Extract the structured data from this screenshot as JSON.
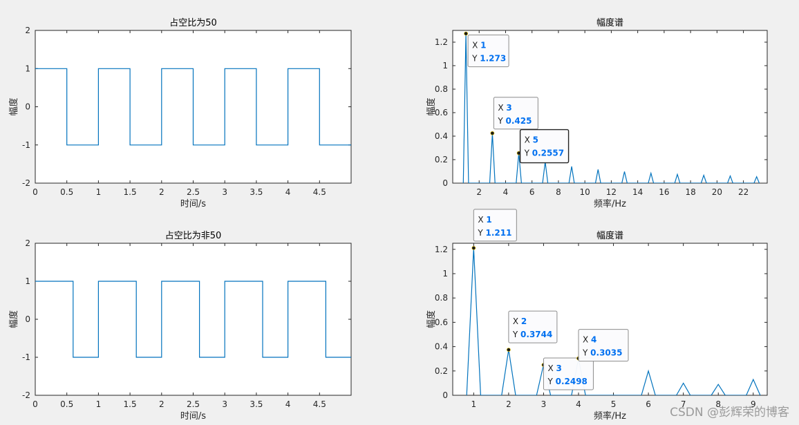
{
  "watermark": "CSDN @彭辉荣的博客",
  "chart_data": [
    {
      "type": "line",
      "title": "占空比为50",
      "xlabel": "时间/s",
      "ylabel": "幅度",
      "xlim": [
        0,
        5
      ],
      "ylim": [
        -2,
        2
      ],
      "xticks": [
        0,
        0.5,
        1,
        1.5,
        2,
        2.5,
        3,
        3.5,
        4,
        4.5
      ],
      "xtick_labels": [
        "0",
        "0.5",
        "1",
        "1.5",
        "2",
        "2.5",
        "3",
        "3.5",
        "4",
        "4.5"
      ],
      "yticks": [
        -2,
        -1,
        0,
        1,
        2
      ],
      "ytick_labels": [
        "-2",
        "-1",
        "0",
        "1",
        "2"
      ],
      "series": [
        {
          "x": [
            0,
            0.5,
            0.5,
            1,
            1,
            1.5,
            1.5,
            2,
            2,
            2.5,
            2.5,
            3,
            3,
            3.5,
            3.5,
            4,
            4,
            4.5,
            4.5,
            5
          ],
          "y": [
            1,
            1,
            -1,
            -1,
            1,
            1,
            -1,
            -1,
            1,
            1,
            -1,
            -1,
            1,
            1,
            -1,
            -1,
            1,
            1,
            -1,
            -1
          ]
        }
      ],
      "datatips": []
    },
    {
      "type": "line",
      "title": "幅度谱",
      "xlabel": "频率/Hz",
      "ylabel": "幅度",
      "xlim": [
        0,
        23.8
      ],
      "ylim": [
        0,
        1.3
      ],
      "xticks": [
        2,
        4,
        6,
        8,
        10,
        12,
        14,
        16,
        18,
        20,
        22
      ],
      "xtick_labels": [
        "2",
        "4",
        "6",
        "8",
        "10",
        "12",
        "14",
        "16",
        "18",
        "20",
        "22"
      ],
      "yticks": [
        0,
        0.2,
        0.4,
        0.6,
        0.8,
        1,
        1.2
      ],
      "ytick_labels": [
        "0",
        "0.2",
        "0.4",
        "0.6",
        "0.8",
        "1",
        "1.2"
      ],
      "series": [
        {
          "x": [
            0.8,
            1,
            1.2,
            2.8,
            3,
            3.2,
            4.8,
            5,
            5.2,
            6.8,
            7,
            7.2,
            8.8,
            9,
            9.2,
            10.8,
            11,
            11.2,
            12.8,
            13,
            13.2,
            14.8,
            15,
            15.2,
            16.8,
            17,
            17.2,
            18.8,
            19,
            19.2,
            20.8,
            21,
            21.2,
            22.8,
            23,
            23.2
          ],
          "y": [
            0,
            1.273,
            0,
            0,
            0.425,
            0,
            0,
            0.2557,
            0,
            0,
            0.182,
            0,
            0,
            0.142,
            0,
            0,
            0.116,
            0,
            0,
            0.098,
            0,
            0,
            0.085,
            0,
            0,
            0.075,
            0,
            0,
            0.067,
            0,
            0,
            0.061,
            0,
            0,
            0.055,
            0
          ]
        }
      ],
      "datatips": [
        {
          "x": 1,
          "y": 1.273,
          "xl": "1",
          "yl": "1.273"
        },
        {
          "x": 3,
          "y": 0.425,
          "xl": "3",
          "yl": "0.425"
        },
        {
          "x": 5,
          "y": 0.2557,
          "xl": "5",
          "yl": "0.2557",
          "selected": true
        }
      ]
    },
    {
      "type": "line",
      "title": "占空比为非50",
      "xlabel": "时间/s",
      "ylabel": "幅度",
      "xlim": [
        0,
        5
      ],
      "ylim": [
        -2,
        2
      ],
      "xticks": [
        0,
        0.5,
        1,
        1.5,
        2,
        2.5,
        3,
        3.5,
        4,
        4.5
      ],
      "xtick_labels": [
        "0",
        "0.5",
        "1",
        "1.5",
        "2",
        "2.5",
        "3",
        "3.5",
        "4",
        "4.5"
      ],
      "yticks": [
        -2,
        -1,
        0,
        1,
        2
      ],
      "ytick_labels": [
        "-2",
        "-1",
        "0",
        "1",
        "2"
      ],
      "series": [
        {
          "x": [
            0,
            0.6,
            0.6,
            1,
            1,
            1.6,
            1.6,
            2,
            2,
            2.6,
            2.6,
            3,
            3,
            3.6,
            3.6,
            4,
            4,
            4.6,
            4.6,
            5
          ],
          "y": [
            1,
            1,
            -1,
            -1,
            1,
            1,
            -1,
            -1,
            1,
            1,
            -1,
            -1,
            1,
            1,
            -1,
            -1,
            1,
            1,
            -1,
            -1
          ]
        }
      ],
      "datatips": []
    },
    {
      "type": "line",
      "title": "幅度谱",
      "xlabel": "频率/Hz",
      "ylabel": "幅度",
      "xlim": [
        0.4,
        9.4
      ],
      "ylim": [
        0,
        1.25
      ],
      "xticks": [
        1,
        2,
        3,
        4,
        5,
        6,
        7,
        8,
        9
      ],
      "xtick_labels": [
        "1",
        "2",
        "3",
        "4",
        "5",
        "6",
        "7",
        "8",
        "9"
      ],
      "yticks": [
        0,
        0.2,
        0.4,
        0.6,
        0.8,
        1,
        1.2
      ],
      "ytick_labels": [
        "0",
        "0.2",
        "0.4",
        "0.6",
        "0.8",
        "1",
        "1.2"
      ],
      "series": [
        {
          "x": [
            0.8,
            1,
            1.2,
            1.8,
            2,
            2.2,
            2.8,
            3,
            3.2,
            3.8,
            4,
            4.2,
            5.8,
            6,
            6.2,
            6.8,
            7,
            7.2,
            7.8,
            8,
            8.2,
            8.8,
            9,
            9.2
          ],
          "y": [
            0,
            1.211,
            0,
            0,
            0.3744,
            0,
            0,
            0.2498,
            0,
            0,
            0.3035,
            0,
            0,
            0.2,
            0,
            0,
            0.1,
            0,
            0,
            0.09,
            0,
            0,
            0.13,
            0
          ]
        }
      ],
      "datatips": [
        {
          "x": 1,
          "y": 1.211,
          "xl": "1",
          "yl": "1.211"
        },
        {
          "x": 2,
          "y": 0.3744,
          "xl": "2",
          "yl": "0.3744"
        },
        {
          "x": 3,
          "y": 0.2498,
          "xl": "3",
          "yl": "0.2498"
        },
        {
          "x": 4,
          "y": 0.3035,
          "xl": "4",
          "yl": "0.3035"
        }
      ]
    }
  ]
}
